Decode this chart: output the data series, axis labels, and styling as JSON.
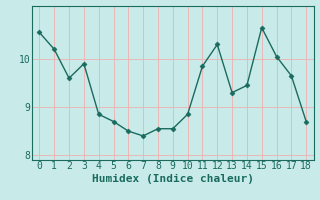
{
  "x": [
    0,
    1,
    2,
    3,
    4,
    5,
    6,
    7,
    8,
    9,
    10,
    11,
    12,
    13,
    14,
    15,
    16,
    17,
    18
  ],
  "y": [
    10.55,
    10.2,
    9.6,
    9.9,
    8.85,
    8.7,
    8.5,
    8.4,
    8.55,
    8.55,
    8.85,
    9.85,
    10.3,
    9.3,
    9.45,
    10.65,
    10.05,
    9.65,
    8.7
  ],
  "line_color": "#1a6b5e",
  "marker": "D",
  "marker_size": 2.5,
  "bg_color": "#c8eae8",
  "grid_color": "#e8b8b8",
  "xlabel": "Humidex (Indice chaleur)",
  "ylim": [
    7.9,
    11.1
  ],
  "xlim": [
    -0.5,
    18.5
  ],
  "yticks": [
    8,
    9,
    10
  ],
  "xticks": [
    0,
    1,
    2,
    3,
    4,
    5,
    6,
    7,
    8,
    9,
    10,
    11,
    12,
    13,
    14,
    15,
    16,
    17,
    18
  ],
  "tick_color": "#1a6b5e",
  "label_color": "#1a6b5e",
  "spine_color": "#1a6b5e",
  "font_size": 7,
  "xlabel_fontsize": 8
}
